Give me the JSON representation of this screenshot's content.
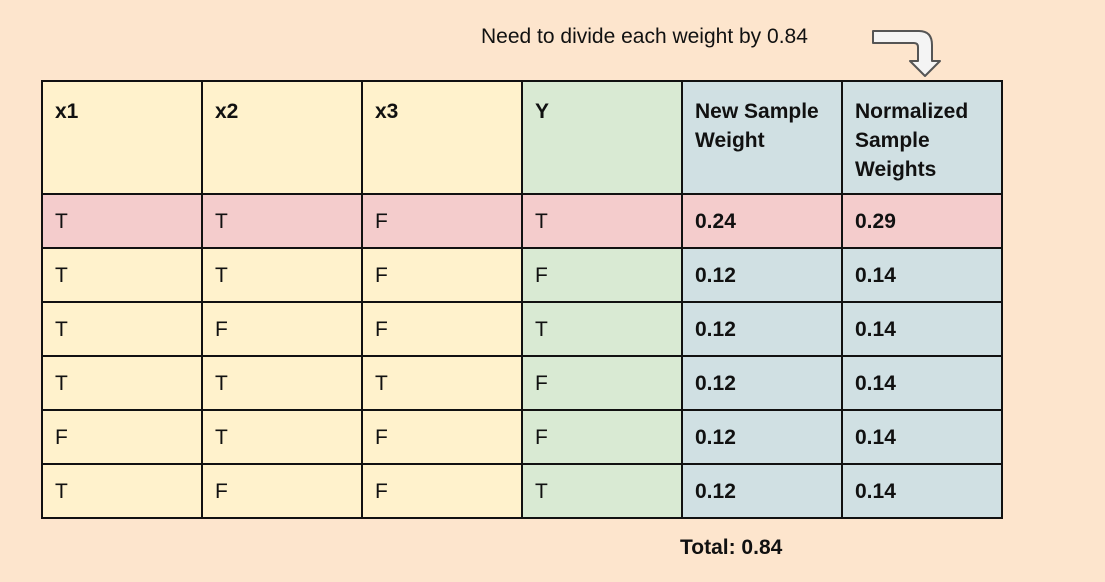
{
  "note": "Need to divide each weight by 0.84",
  "table": {
    "headers": [
      "x1",
      "x2",
      "x3",
      "Y",
      "New Sample Weight",
      "Normalized Sample Weights"
    ],
    "rows": [
      [
        "T",
        "T",
        "F",
        "T",
        "0.24",
        "0.29"
      ],
      [
        "T",
        "T",
        "F",
        "F",
        "0.12",
        "0.14"
      ],
      [
        "T",
        "F",
        "F",
        "T",
        "0.12",
        "0.14"
      ],
      [
        "T",
        "T",
        "T",
        "F",
        "0.12",
        "0.14"
      ],
      [
        "F",
        "T",
        "F",
        "F",
        "0.12",
        "0.14"
      ],
      [
        "T",
        "F",
        "F",
        "T",
        "0.12",
        "0.14"
      ]
    ],
    "highlighted_row_index": 0
  },
  "total": "Total: 0.84",
  "colors": {
    "background": "#fde5cd",
    "feature_columns": "#fff2cc",
    "label_column": "#d9ead3",
    "weight_columns": "#d0e0e3",
    "highlighted_row": "#f4cccc"
  }
}
